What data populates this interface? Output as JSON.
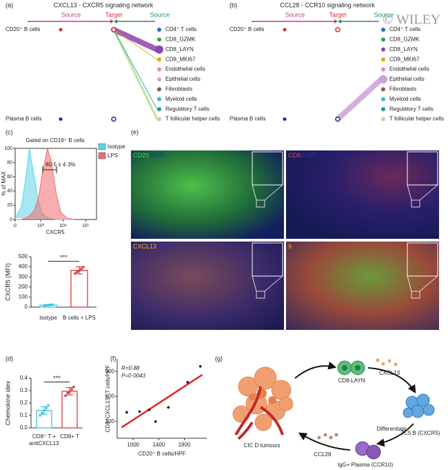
{
  "watermark": "© WILEY",
  "panel_a": {
    "letter": "(a)",
    "title": "CXCL13 - CXCR5 signaling network",
    "headers": [
      "Source",
      "Target",
      "Source"
    ],
    "receivers": [
      "CD20⁺ B cells",
      "Plasma B cells"
    ],
    "senders": [
      {
        "name": "CD4⁺ T cells",
        "color": "#2f6fb5"
      },
      {
        "name": "CD8_GZMK",
        "color": "#36a23a"
      },
      {
        "name": "CD8_LAYN",
        "color": "#8e44ad"
      },
      {
        "name": "CD8_MKI67",
        "color": "#f39c12"
      },
      {
        "name": "Endothelial cells",
        "color": "#e884c8"
      },
      {
        "name": "Epithelial cells",
        "color": "#c8a2d8"
      },
      {
        "name": "Fibroblasts",
        "color": "#8c564b"
      },
      {
        "name": "Myeloid cells",
        "color": "#3bb7d6"
      },
      {
        "name": "Regulatory T cells",
        "color": "#1a9e8c"
      },
      {
        "name": "T follicular helper cells",
        "color": "#b7dc8f"
      }
    ]
  },
  "panel_b": {
    "letter": "(b)",
    "title": "CCL28 - CCR10 signaling network",
    "headers": [
      "Source",
      "Target",
      "Source"
    ],
    "receivers": [
      "CD20⁺ B cells",
      "Plasma B cells"
    ],
    "senders": [
      {
        "name": "CD4⁺ T cells",
        "color": "#2f6fb5"
      },
      {
        "name": "CD8_GZMK",
        "color": "#36a23a"
      },
      {
        "name": "CD8_LAYN",
        "color": "#8e44ad"
      },
      {
        "name": "CD8_MKI67",
        "color": "#f39c12"
      },
      {
        "name": "Endothelial cells",
        "color": "#e884c8"
      },
      {
        "name": "Epithelial cells",
        "color": "#c8a2d8"
      },
      {
        "name": "Fibroblasts",
        "color": "#8c564b"
      },
      {
        "name": "Myeloid cells",
        "color": "#3bb7d6"
      },
      {
        "name": "Regulatory T cells",
        "color": "#1a9e8c"
      },
      {
        "name": "T follicular helper cells",
        "color": "#b7dc8f"
      }
    ]
  },
  "panel_c": {
    "letter": "(c)"
  },
  "panel_d": {
    "letter": "(d)"
  },
  "panel_e": {
    "letter": "(e)",
    "images": [
      {
        "label": [
          {
            "text": "CD20",
            "color": "#3ddc4a"
          },
          {
            "text": "/DAPI",
            "color": "#2233aa"
          }
        ]
      },
      {
        "label": [
          {
            "text": "CD8",
            "color": "#ff4040"
          },
          {
            "text": "/DAPI",
            "color": "#2233aa"
          }
        ]
      },
      {
        "label": [
          {
            "text": "CXCL13",
            "color": "#ffae1a"
          },
          {
            "text": "/DAPI",
            "color": "#2233aa"
          }
        ]
      },
      {
        "label": [
          {
            "text": "9",
            "color": "#ffae1a"
          }
        ]
      }
    ]
  },
  "panel_f": {
    "letter": "(f)"
  },
  "panel_g": {
    "letter": "(g)",
    "labels": {
      "tumour": "CIC D tumours",
      "cd8": "CD8-LAYN",
      "cxcl13": "CXCL13",
      "tls": "TLS B (CXCR5)",
      "diff": "Differentiate",
      "plasma": "IgG+ Plasma (CCR10)",
      "ccl28": "CCL28"
    }
  },
  "chart_data": [
    {
      "type": "area",
      "title": "Gated on CD19⁺ B cells",
      "xlabel": "CXCR5",
      "ylabel": "% of MAX",
      "xscale": "asinh",
      "x": [
        0,
        100,
        200,
        300,
        500,
        800,
        1200,
        2000,
        3000,
        5000,
        8000,
        15000,
        30000
      ],
      "series": [
        {
          "name": "Isotype",
          "color": "#5cd3ea",
          "values": [
            2,
            18,
            60,
            100,
            62,
            25,
            8,
            3,
            1,
            0,
            0,
            0,
            0
          ]
        },
        {
          "name": "LPS",
          "color": "#f26b6b",
          "values": [
            0,
            0,
            2,
            5,
            12,
            30,
            65,
            100,
            82,
            35,
            10,
            2,
            0
          ]
        }
      ],
      "xlim": [
        0,
        300000
      ],
      "xticks": [
        0,
        {
          "value": 1000,
          "label": "10³"
        },
        {
          "value": 10000,
          "label": "10⁴"
        },
        {
          "value": 100000,
          "label": "10⁵"
        }
      ],
      "ylim": [
        0,
        100
      ],
      "yticks": [
        0,
        20,
        40,
        60,
        80,
        100
      ],
      "annotation": "80·5 ± 4·3%",
      "legend": "right"
    },
    {
      "type": "bar",
      "ylabel": "CXCR5 (MFI)",
      "categories": [
        "Isotype",
        "B cells + LPS"
      ],
      "values": [
        20,
        365
      ],
      "errors": [
        6,
        35
      ],
      "points": [
        [
          14,
          18,
          20,
          23,
          25
        ],
        [
          335,
          350,
          362,
          380,
          398
        ]
      ],
      "colors": [
        "#3cc3e0",
        "#e03a3a"
      ],
      "ylim": [
        0,
        500
      ],
      "yticks": [
        0,
        100,
        200,
        300,
        400,
        500
      ],
      "annotation": "***"
    },
    {
      "type": "bar",
      "ylabel": "Chemokine idex",
      "categories": [
        [
          "CD8⁺ T +",
          "antiCXCL13"
        ],
        [
          "CD8+ T"
        ]
      ],
      "values": [
        0.14,
        0.295
      ],
      "errors": [
        0.03,
        0.03
      ],
      "points": [
        [
          0.1,
          0.12,
          0.14,
          0.16,
          0.18
        ],
        [
          0.26,
          0.28,
          0.29,
          0.31,
          0.33
        ]
      ],
      "colors": [
        "#3cc3e0",
        "#e03a3a"
      ],
      "ylim": [
        0,
        0.4
      ],
      "yticks": [
        {
          "value": 0,
          "label": "0.0"
        },
        0.1,
        0.2,
        0.3,
        0.4
      ],
      "annotation": "***"
    },
    {
      "type": "scatter",
      "xlabel": "CD20⁺ B cells/HPF",
      "ylabel": "CD8⁺CXCL13⁺ T cells/HPF",
      "annotations": [
        "R=0·88",
        "P=0·0043"
      ],
      "x": [
        900,
        1100,
        1250,
        1350,
        1550,
        1850,
        2050
      ],
      "values": [
        410,
        420,
        440,
        300,
        470,
        770,
        960
      ],
      "color": "#111111",
      "fit": {
        "x": [
          820,
          2080
        ],
        "values": [
          230,
          860
        ],
        "color": "#e02020"
      },
      "xlim": [
        750,
        2150
      ],
      "xticks": [
        1000,
        1400,
        1800
      ],
      "ylim": [
        100,
        1050
      ],
      "yticks": [
        300,
        600,
        900
      ]
    }
  ]
}
